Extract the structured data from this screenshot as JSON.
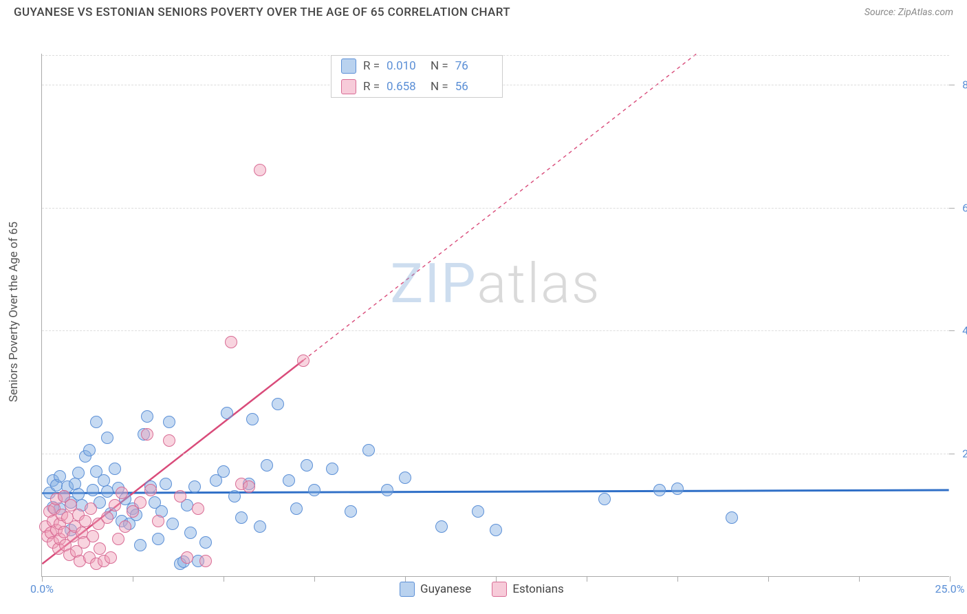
{
  "header": {
    "title": "GUYANESE VS ESTONIAN SENIORS POVERTY OVER THE AGE OF 65 CORRELATION CHART",
    "source": "Source: ZipAtlas.com"
  },
  "chart": {
    "type": "scatter",
    "y_axis_title": "Seniors Poverty Over the Age of 65",
    "xlim": [
      0,
      25
    ],
    "ylim": [
      0,
      85
    ],
    "x_ticks": [
      0,
      2.5,
      5,
      7.5,
      10,
      12.5,
      15,
      17.5,
      20,
      22.5,
      25
    ],
    "x_tick_labels": {
      "0": "0.0%",
      "25": "25.0%"
    },
    "y_gridlines": [
      20,
      40,
      60,
      80
    ],
    "y_tick_labels": {
      "20": "20.0%",
      "40": "40.0%",
      "60": "60.0%",
      "80": "80.0%"
    },
    "background_color": "#ffffff",
    "grid_color": "#dddddd",
    "axis_color": "#aaaaaa",
    "label_color": "#5b8fd6",
    "watermark": {
      "z": "ZIP",
      "rest": "atlas"
    },
    "series": [
      {
        "name": "Guyanese",
        "fill": "rgba(128,173,226,0.45)",
        "stroke": "#5b8fd6",
        "marker_radius": 9,
        "R": "0.010",
        "N": "76",
        "trend": {
          "slope": 0.02,
          "intercept": 13.5,
          "color": "#2f6fc7",
          "width": 3,
          "dash": "none"
        },
        "points": [
          [
            0.2,
            13.5
          ],
          [
            0.3,
            15.5
          ],
          [
            0.3,
            11.2
          ],
          [
            0.4,
            14.8
          ],
          [
            0.5,
            11.0
          ],
          [
            0.5,
            16.2
          ],
          [
            0.6,
            13.0
          ],
          [
            0.7,
            14.5
          ],
          [
            0.8,
            7.5
          ],
          [
            0.8,
            12.0
          ],
          [
            0.9,
            15.0
          ],
          [
            1.0,
            13.3
          ],
          [
            1.0,
            16.8
          ],
          [
            1.1,
            11.5
          ],
          [
            1.2,
            19.5
          ],
          [
            1.3,
            20.5
          ],
          [
            1.4,
            14.0
          ],
          [
            1.5,
            17.0
          ],
          [
            1.5,
            25.0
          ],
          [
            1.6,
            12.0
          ],
          [
            1.7,
            15.5
          ],
          [
            1.8,
            13.8
          ],
          [
            1.8,
            22.5
          ],
          [
            1.9,
            10.2
          ],
          [
            2.0,
            17.5
          ],
          [
            2.1,
            14.3
          ],
          [
            2.2,
            9.0
          ],
          [
            2.3,
            12.5
          ],
          [
            2.4,
            8.5
          ],
          [
            2.5,
            11.0
          ],
          [
            2.6,
            10.0
          ],
          [
            2.7,
            5.0
          ],
          [
            2.8,
            23.0
          ],
          [
            2.9,
            26.0
          ],
          [
            3.0,
            14.5
          ],
          [
            3.1,
            12.0
          ],
          [
            3.2,
            6.0
          ],
          [
            3.3,
            10.5
          ],
          [
            3.4,
            15.0
          ],
          [
            3.5,
            25.0
          ],
          [
            3.6,
            8.5
          ],
          [
            3.8,
            2.0
          ],
          [
            3.9,
            2.3
          ],
          [
            4.0,
            11.5
          ],
          [
            4.1,
            7.0
          ],
          [
            4.2,
            14.5
          ],
          [
            4.3,
            2.5
          ],
          [
            4.5,
            5.5
          ],
          [
            4.8,
            15.5
          ],
          [
            5.0,
            17.0
          ],
          [
            5.1,
            26.5
          ],
          [
            5.3,
            13.0
          ],
          [
            5.5,
            9.5
          ],
          [
            5.7,
            15.0
          ],
          [
            5.8,
            25.5
          ],
          [
            6.0,
            8.0
          ],
          [
            6.2,
            18.0
          ],
          [
            6.5,
            28.0
          ],
          [
            6.8,
            15.5
          ],
          [
            7.0,
            11.0
          ],
          [
            7.3,
            18.0
          ],
          [
            7.5,
            14.0
          ],
          [
            8.0,
            17.5
          ],
          [
            8.5,
            10.5
          ],
          [
            9.0,
            20.5
          ],
          [
            9.5,
            14.0
          ],
          [
            10.0,
            16.0
          ],
          [
            11.0,
            8.0
          ],
          [
            12.0,
            10.5
          ],
          [
            12.5,
            7.5
          ],
          [
            15.5,
            12.5
          ],
          [
            17.0,
            14.0
          ],
          [
            17.5,
            14.2
          ],
          [
            19.0,
            9.5
          ]
        ]
      },
      {
        "name": "Estonians",
        "fill": "rgba(240,160,185,0.45)",
        "stroke": "#d86b94",
        "marker_radius": 9,
        "R": "0.658",
        "N": "56",
        "trend": {
          "slope": 4.6,
          "intercept": 2.0,
          "color": "#d94b7a",
          "width": 2.5,
          "dash": "none",
          "x_solid_end": 7.2,
          "dash_after": "5,5"
        },
        "points": [
          [
            0.1,
            8.0
          ],
          [
            0.15,
            6.5
          ],
          [
            0.2,
            10.5
          ],
          [
            0.25,
            7.0
          ],
          [
            0.3,
            9.0
          ],
          [
            0.3,
            5.5
          ],
          [
            0.35,
            11.0
          ],
          [
            0.4,
            7.5
          ],
          [
            0.4,
            12.5
          ],
          [
            0.45,
            4.5
          ],
          [
            0.5,
            8.5
          ],
          [
            0.5,
            6.0
          ],
          [
            0.55,
            10.0
          ],
          [
            0.6,
            7.2
          ],
          [
            0.6,
            13.0
          ],
          [
            0.65,
            5.0
          ],
          [
            0.7,
            9.5
          ],
          [
            0.75,
            3.5
          ],
          [
            0.8,
            11.5
          ],
          [
            0.85,
            6.5
          ],
          [
            0.9,
            8.0
          ],
          [
            0.95,
            4.0
          ],
          [
            1.0,
            10.0
          ],
          [
            1.05,
            2.5
          ],
          [
            1.1,
            7.0
          ],
          [
            1.15,
            5.5
          ],
          [
            1.2,
            9.0
          ],
          [
            1.3,
            3.0
          ],
          [
            1.35,
            11.0
          ],
          [
            1.4,
            6.5
          ],
          [
            1.5,
            2.0
          ],
          [
            1.55,
            8.5
          ],
          [
            1.6,
            4.5
          ],
          [
            1.7,
            2.5
          ],
          [
            1.8,
            9.5
          ],
          [
            1.9,
            3.0
          ],
          [
            2.0,
            11.5
          ],
          [
            2.1,
            6.0
          ],
          [
            2.2,
            13.5
          ],
          [
            2.3,
            8.0
          ],
          [
            2.5,
            10.5
          ],
          [
            2.7,
            12.0
          ],
          [
            2.9,
            23.0
          ],
          [
            3.0,
            14.0
          ],
          [
            3.2,
            9.0
          ],
          [
            3.5,
            22.0
          ],
          [
            3.8,
            13.0
          ],
          [
            4.0,
            3.0
          ],
          [
            4.3,
            11.0
          ],
          [
            4.5,
            2.5
          ],
          [
            5.2,
            38.0
          ],
          [
            5.5,
            15.0
          ],
          [
            5.7,
            14.5
          ],
          [
            6.0,
            66.0
          ],
          [
            7.2,
            35.0
          ]
        ]
      }
    ],
    "bottom_legend": [
      {
        "swatch": "sw-blue",
        "label": "Guyanese"
      },
      {
        "swatch": "sw-pink",
        "label": "Estonians"
      }
    ]
  }
}
